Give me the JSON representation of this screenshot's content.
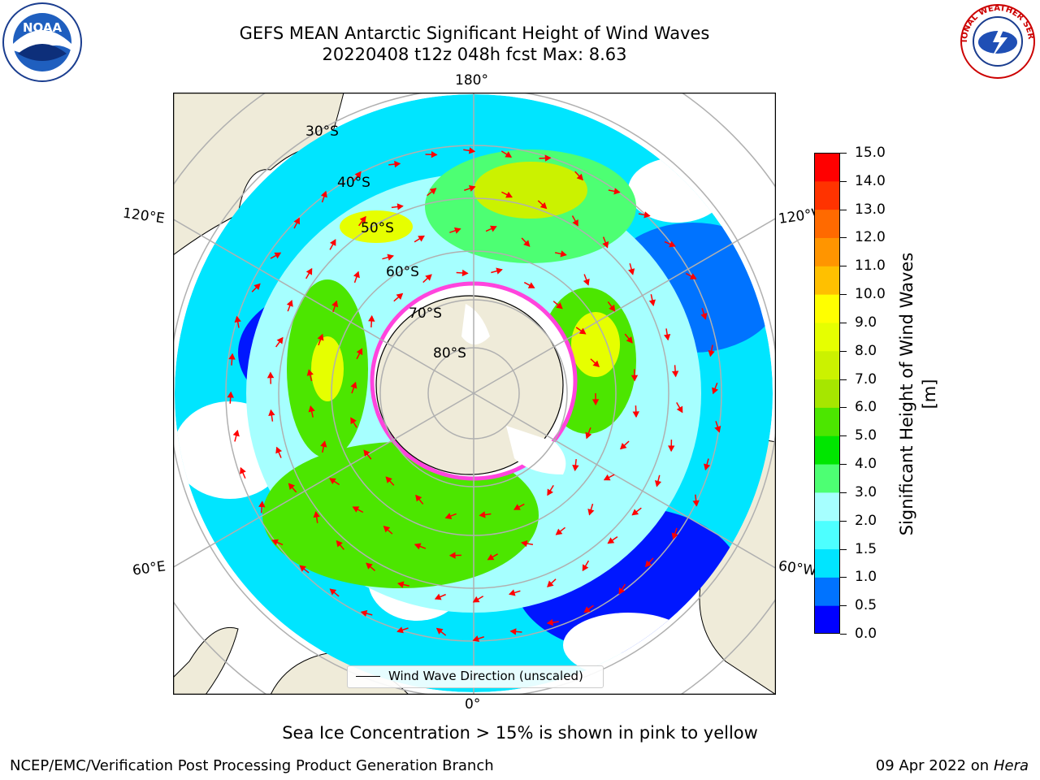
{
  "title": {
    "line1": "GEFS MEAN Antarctic Significant Height of Wind Waves",
    "line2": "20220408 t12z 048h fcst   Max: 8.63"
  },
  "logos": [
    {
      "name": "noaa-logo",
      "text": "NOAA"
    },
    {
      "name": "nws-logo",
      "text": "NATIONAL WEATHER SERVICE"
    }
  ],
  "map": {
    "projection": "south-polar-stereographic",
    "lon_labels": {
      "top": "180°",
      "bottom": "0°",
      "left_upper": "120°E",
      "left_lower": "60°E",
      "right_upper": "120°W",
      "right_lower": "60°W"
    },
    "lat_labels": [
      "30°S",
      "40°S",
      "50°S",
      "60°S",
      "70°S",
      "80°S"
    ],
    "legend_label": "Wind Wave Direction (unscaled)",
    "colors": {
      "land": "#efebd9",
      "grid": "#b0b0b0",
      "arrow": "#ff0000",
      "ice": "#ff44dd"
    }
  },
  "colorbar": {
    "label": "Significant Height of Wind Waves [m]",
    "ticks": [
      "0.0",
      "0.5",
      "1.0",
      "1.5",
      "2.0",
      "3.0",
      "4.0",
      "5.0",
      "6.0",
      "7.0",
      "8.0",
      "9.0",
      "10.0",
      "11.0",
      "12.0",
      "13.0",
      "14.0",
      "15.0"
    ],
    "colors": [
      "#0000ff",
      "#0073ff",
      "#00e5ff",
      "#4dffff",
      "#a6ffff",
      "#4dff73",
      "#00e600",
      "#4ce600",
      "#a6e600",
      "#cbf200",
      "#e6ff00",
      "#ffff00",
      "#ffc000",
      "#ff9500",
      "#ff6a00",
      "#ff3300",
      "#ff0000"
    ]
  },
  "footnote": "Sea Ice Concentration > 15% is shown in pink to yellow",
  "credit": "NCEP/EMC/Verification Post Processing Product Generation Branch",
  "date": {
    "text": "09 Apr 2022 on ",
    "host": "Hera"
  }
}
